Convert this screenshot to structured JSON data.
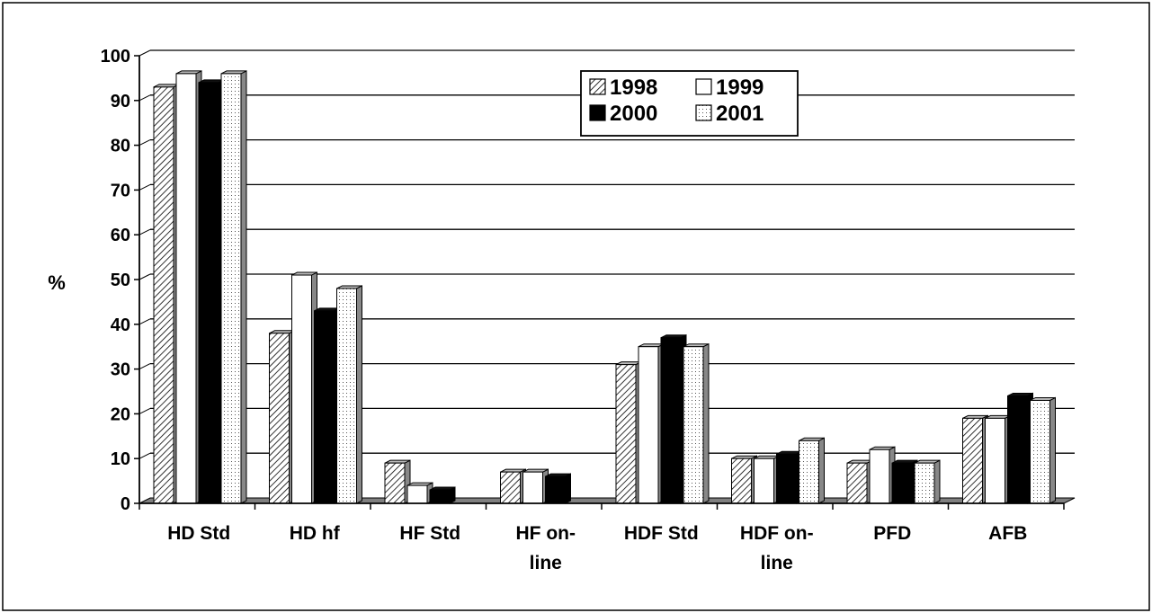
{
  "chart_data": {
    "type": "bar",
    "style": "3d-clustered-column",
    "ylabel": "%",
    "ylim": [
      0,
      100
    ],
    "yticks": [
      0,
      10,
      20,
      30,
      40,
      50,
      60,
      70,
      80,
      90,
      100
    ],
    "grid": true,
    "legend_position": "top-center",
    "categories": [
      [
        "HD Std"
      ],
      [
        "HD hf"
      ],
      [
        "HF Std"
      ],
      [
        "HF on-",
        "line"
      ],
      [
        "HDF Std"
      ],
      [
        "HDF on-",
        "line"
      ],
      [
        "PFD"
      ],
      [
        "AFB"
      ]
    ],
    "series": [
      {
        "name": "1998",
        "fill": "hatch",
        "values": [
          93,
          38,
          9,
          7,
          31,
          10,
          9,
          19
        ]
      },
      {
        "name": "1999",
        "fill": "white",
        "values": [
          96,
          51,
          4,
          7,
          35,
          10,
          12,
          19
        ]
      },
      {
        "name": "2000",
        "fill": "black",
        "values": [
          94,
          43,
          3,
          6,
          37,
          11,
          9,
          24
        ]
      },
      {
        "name": "2001",
        "fill": "dotted",
        "values": [
          96,
          48,
          0,
          0,
          35,
          14,
          9,
          23
        ]
      }
    ]
  }
}
